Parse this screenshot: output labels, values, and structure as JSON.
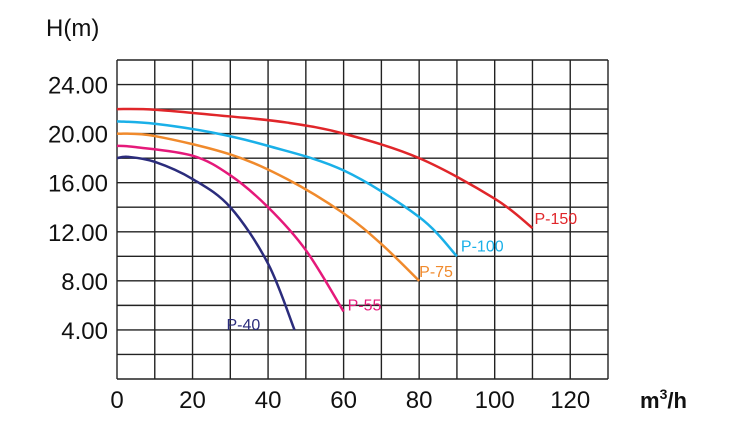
{
  "chart_data": {
    "type": "line",
    "title": "",
    "ylabel": "H(m)",
    "xlabel_base": "m",
    "xlabel_sup": "3",
    "xlabel_suffix": "/h",
    "xlim": [
      0,
      130
    ],
    "ylim": [
      0,
      26
    ],
    "x_grid_step": 10,
    "y_grid_step": 2,
    "grid": true,
    "x_ticks": [
      0,
      20,
      40,
      60,
      80,
      100,
      120
    ],
    "x_tick_labels": [
      "0",
      "20",
      "40",
      "60",
      "80",
      "100",
      "120"
    ],
    "y_ticks": [
      4,
      8,
      12,
      16,
      20,
      24
    ],
    "y_tick_labels": [
      "4.00",
      "8.00",
      "12.00",
      "16.00",
      "20.00",
      "24.00"
    ],
    "series": [
      {
        "name": "P-150",
        "color": "#e0262a",
        "x": [
          0,
          10,
          30,
          45,
          60,
          80,
          100,
          110
        ],
        "y": [
          22,
          21.95,
          21.4,
          20.9,
          20,
          18,
          14.7,
          12.3
        ]
      },
      {
        "name": "P-100",
        "color": "#1ab0e8",
        "x": [
          0,
          10,
          25,
          40,
          60,
          80,
          90
        ],
        "y": [
          21,
          20.8,
          20.1,
          19,
          17,
          13.2,
          10
        ]
      },
      {
        "name": "P-75",
        "color": "#f08a2c",
        "x": [
          0,
          10,
          30,
          45,
          60,
          70,
          80
        ],
        "y": [
          20,
          19.8,
          18.3,
          16.3,
          13.5,
          11,
          8
        ]
      },
      {
        "name": "P-55",
        "color": "#e5197a",
        "x": [
          0,
          5,
          20,
          30,
          40,
          50,
          60
        ],
        "y": [
          19,
          18.9,
          18.2,
          16.6,
          14,
          10.5,
          5.5
        ]
      },
      {
        "name": "P-40",
        "color": "#2b2c7c",
        "x": [
          0,
          3,
          10,
          20,
          30,
          40,
          47
        ],
        "y": [
          18,
          18.1,
          17.7,
          16.3,
          14,
          9.4,
          4
        ]
      }
    ]
  }
}
